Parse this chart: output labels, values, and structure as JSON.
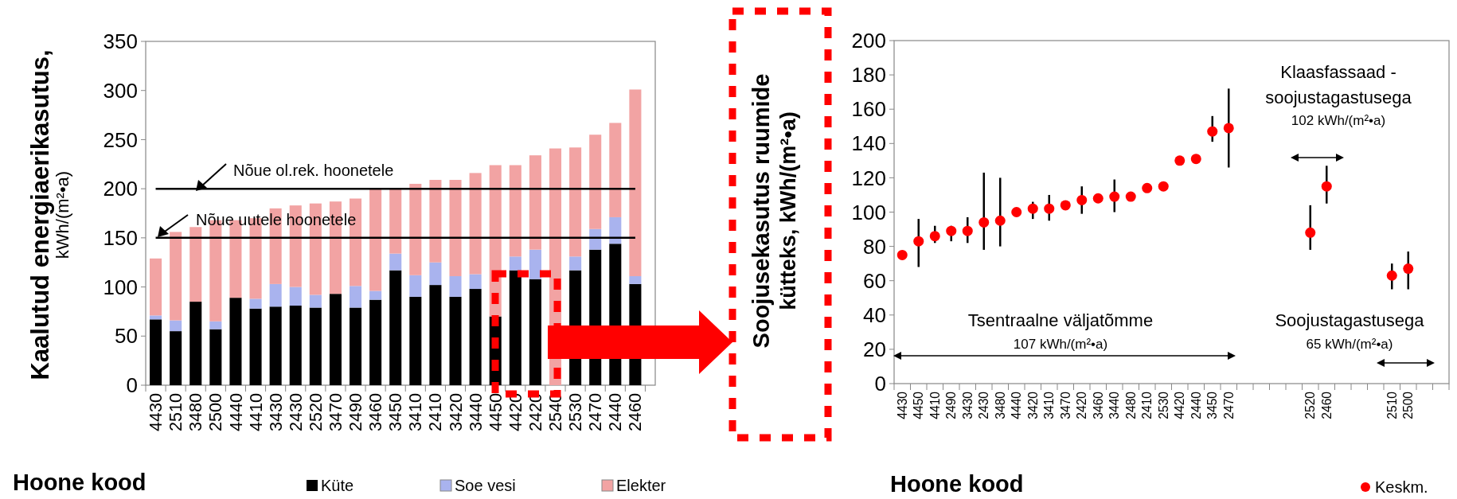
{
  "chart_data": [
    {
      "type": "bar",
      "stacked": true,
      "xlabel": "Hoone kood",
      "ylabel": "Kaalutud energiaerikasutus, kWh/(m²•a)",
      "categories": [
        "4430",
        "2510",
        "3480",
        "2500",
        "4440",
        "4410",
        "3430",
        "2430",
        "2520",
        "3470",
        "2490",
        "3460",
        "3450",
        "3410",
        "2410",
        "3420",
        "3440",
        "4450",
        "4420",
        "2420",
        "2540",
        "2530",
        "2470",
        "2440",
        "2460"
      ],
      "series": [
        {
          "name": "Küte",
          "color": "#000000",
          "values": [
            67,
            55,
            85,
            57,
            89,
            78,
            80,
            81,
            79,
            93,
            79,
            87,
            117,
            90,
            102,
            90,
            98,
            70,
            117,
            108,
            0,
            117,
            138,
            144,
            103
          ]
        },
        {
          "name": "Soe vesi",
          "color": "#a9b3ee",
          "values": [
            4,
            11,
            0,
            8,
            0,
            10,
            23,
            19,
            13,
            0,
            22,
            9,
            17,
            22,
            23,
            21,
            15,
            0,
            14,
            30,
            0,
            14,
            21,
            27,
            8
          ]
        },
        {
          "name": "Elekter",
          "color": "#f2a3a3",
          "values": [
            58,
            90,
            76,
            103,
            79,
            82,
            77,
            83,
            93,
            94,
            89,
            104,
            66,
            93,
            84,
            98,
            103,
            154,
            93,
            96,
            241,
            111,
            96,
            96,
            190
          ]
        }
      ],
      "ylim": [
        0,
        350
      ],
      "yticks": [
        0,
        50,
        100,
        150,
        200,
        250,
        300,
        350
      ],
      "ref_lines": [
        {
          "axis": "y",
          "value": 200,
          "label": "Nõue ol.rek. hoonetele",
          "color": "#000000"
        },
        {
          "axis": "y",
          "value": 150,
          "label": "Nõue uutele hoonetele",
          "color": "#000000"
        }
      ],
      "legend": "bottom"
    },
    {
      "type": "scatter",
      "xlabel": "Hoone kood",
      "ylabel": "Soojusekasutus ruumide kütteks, kWh/(m²•a)",
      "categories": [
        "4430",
        "4450",
        "4410",
        "2490",
        "3430",
        "2430",
        "3480",
        "4440",
        "3420",
        "3410",
        "3470",
        "2420",
        "3460",
        "3440",
        "2480",
        "2410",
        "2530",
        "4420",
        "2440",
        "3450",
        "2470",
        null,
        null,
        null,
        null,
        "2520",
        "2460",
        null,
        null,
        null,
        "2510",
        "2500",
        null,
        null
      ],
      "series": [
        {
          "name": "Keskm.",
          "color": "#ff0000",
          "values": [
            75,
            83,
            86,
            89,
            89,
            94,
            95,
            100,
            102,
            102,
            104,
            107,
            108,
            109,
            109,
            114,
            115,
            130,
            131,
            147,
            149,
            null,
            null,
            null,
            null,
            88,
            115,
            null,
            null,
            null,
            63,
            67,
            null,
            null
          ],
          "errors": [
            null,
            [
              68,
              96
            ],
            [
              82,
              92
            ],
            [
              83,
              92
            ],
            [
              82,
              97
            ],
            [
              78,
              123
            ],
            [
              80,
              120
            ],
            null,
            [
              96,
              106
            ],
            [
              95,
              110
            ],
            null,
            [
              99,
              115
            ],
            null,
            [
              100,
              119
            ],
            null,
            null,
            null,
            null,
            null,
            [
              141,
              156
            ],
            [
              126,
              172
            ],
            null,
            null,
            null,
            null,
            [
              78,
              104
            ],
            [
              105,
              127
            ],
            null,
            null,
            null,
            [
              55,
              70
            ],
            [
              55,
              77
            ],
            null,
            null
          ]
        }
      ],
      "ylim": [
        0,
        200
      ],
      "yticks": [
        0,
        20,
        40,
        60,
        80,
        100,
        120,
        140,
        160,
        180,
        200
      ],
      "marker": "circle",
      "legend": "bottom right",
      "annotations": [
        "Tsentraalne väljatõmme",
        "107 kWh/(m²•a)",
        "Klaasfassaad - soojustagastusega",
        "102 kWh/(m²•a)",
        "Soojustagastusega",
        "65 kWh/(m²•a)"
      ]
    }
  ]
}
